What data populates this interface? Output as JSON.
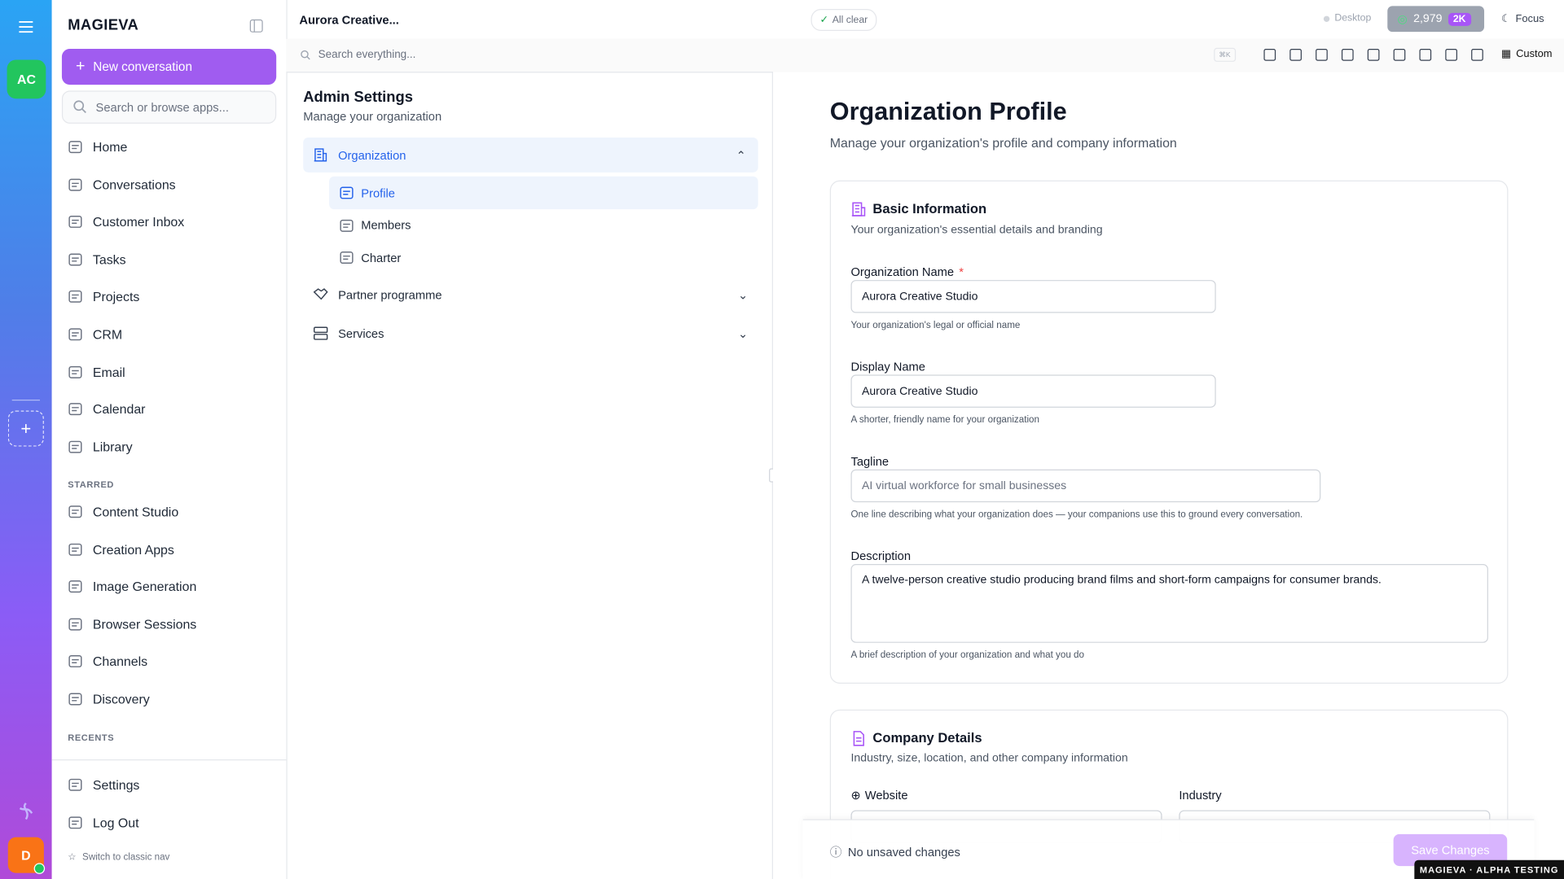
{
  "rail": {
    "workspace_avatar": "AC",
    "user_avatar": "D"
  },
  "sidebar": {
    "brand": "MAGIEVA",
    "new_conversation": "New conversation",
    "search_placeholder": "Search or browse apps...",
    "nav": [
      "Home",
      "Conversations",
      "Customer Inbox",
      "Tasks",
      "Projects",
      "CRM",
      "Email",
      "Calendar",
      "Library"
    ],
    "starred_label": "STARRED",
    "starred": [
      "Content Studio",
      "Creation Apps",
      "Image Generation",
      "Browser Sessions",
      "Channels",
      "Discovery"
    ],
    "recents_label": "RECENTS",
    "footer": [
      "Settings",
      "Log Out"
    ],
    "switch_nav": "Switch to classic nav"
  },
  "topbar": {
    "title": "Aurora Creative...",
    "status": "All clear",
    "desktop": "Desktop",
    "credits": "2,979",
    "credits_badge": "2K",
    "focus": "Focus",
    "search_placeholder": "Search everything...",
    "shortcut": "⌘K",
    "custom": "Custom"
  },
  "settings_nav": {
    "title": "Admin Settings",
    "subtitle": "Manage your organization",
    "organization": "Organization",
    "organization_items": [
      "Profile",
      "Members",
      "Charter"
    ],
    "partner": "Partner programme",
    "services": "Services"
  },
  "main": {
    "title": "Organization Profile",
    "subtitle": "Manage your organization's profile and company information",
    "basic": {
      "title": "Basic Information",
      "subtitle": "Your organization's essential details and branding",
      "fields": [
        {
          "label": "Organization Name",
          "required": "*",
          "value": "Aurora Creative Studio",
          "help": "Your organization's legal or official name"
        },
        {
          "label": "Display Name",
          "value": "Aurora Creative Studio",
          "help": "A shorter, friendly name for your organization"
        },
        {
          "label": "Tagline",
          "placeholder": "AI virtual workforce for small businesses",
          "help": "One line describing what your organization does — your companions use this to ground every conversation."
        },
        {
          "label": "Description",
          "value": "A twelve-person creative studio producing brand films and short-form campaigns for consumer brands.",
          "help": "A brief description of your organization and what you do"
        }
      ]
    },
    "company": {
      "title": "Company Details",
      "subtitle": "Industry, size, location, and other company information",
      "website": "Website",
      "industry": "Industry"
    }
  },
  "savebar": {
    "status": "No unsaved changes",
    "save": "Save Changes"
  },
  "badge": "MAGIEVA · ALPHA TESTING"
}
